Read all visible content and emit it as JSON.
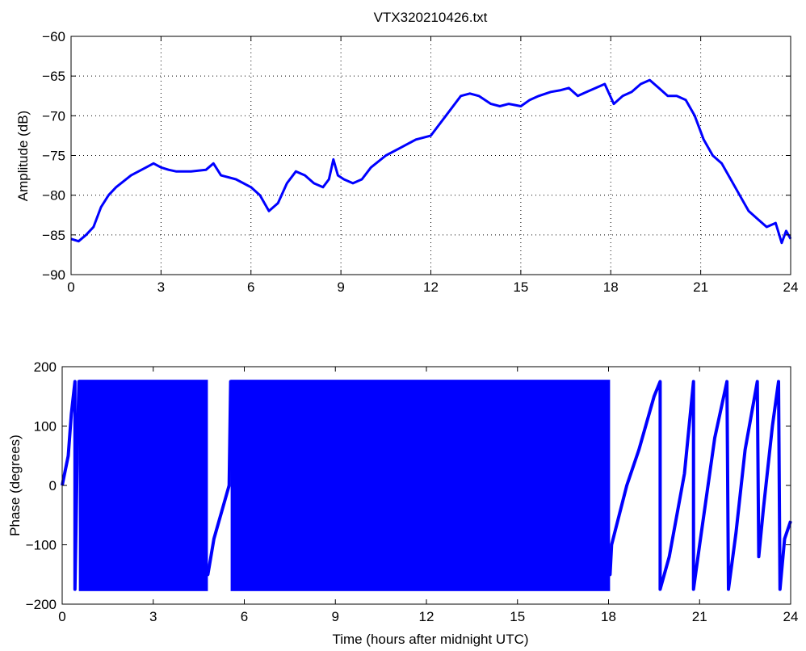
{
  "chart_data": [
    {
      "type": "line",
      "title": "VTX320210426.txt",
      "xlabel": "",
      "ylabel": "Amplitude (dB)",
      "xlim": [
        0,
        24
      ],
      "ylim": [
        -90,
        -60
      ],
      "xticks": [
        "0",
        "3",
        "6",
        "9",
        "12",
        "15",
        "18",
        "21",
        "24"
      ],
      "yticks": [
        "−60",
        "−65",
        "−70",
        "−75",
        "−80",
        "−85",
        "−90"
      ],
      "grid": true,
      "color": "#0000ff",
      "series": [
        {
          "x": [
            0,
            0.25,
            0.5,
            0.75,
            1.0,
            1.25,
            1.5,
            2.0,
            2.5,
            2.75,
            3.0,
            3.25,
            3.5,
            4.0,
            4.5,
            4.75,
            5.0,
            5.5,
            6.0,
            6.3,
            6.6,
            6.9,
            7.2,
            7.5,
            7.8,
            8.1,
            8.4,
            8.6,
            8.75,
            8.9,
            9.1,
            9.4,
            9.7,
            10.0,
            10.5,
            11.0,
            11.5,
            12.0,
            12.5,
            13.0,
            13.3,
            13.6,
            14.0,
            14.3,
            14.6,
            15.0,
            15.3,
            15.6,
            16.0,
            16.3,
            16.6,
            16.9,
            17.2,
            17.5,
            17.8,
            18.1,
            18.4,
            18.7,
            19.0,
            19.3,
            19.6,
            19.9,
            20.2,
            20.5,
            20.8,
            21.1,
            21.4,
            21.7,
            22.0,
            22.3,
            22.6,
            22.9,
            23.2,
            23.5,
            23.7,
            23.85,
            24.0
          ],
          "values": [
            -85.5,
            -85.8,
            -85.0,
            -84.0,
            -81.5,
            -80.0,
            -79.0,
            -77.5,
            -76.5,
            -76.0,
            -76.5,
            -76.8,
            -77.0,
            -77.0,
            -76.8,
            -76.0,
            -77.5,
            -78.0,
            -79.0,
            -80.0,
            -82.0,
            -81.0,
            -78.5,
            -77.0,
            -77.5,
            -78.5,
            -79.0,
            -78.0,
            -75.5,
            -77.5,
            -78.0,
            -78.5,
            -78.0,
            -76.5,
            -75.0,
            -74.0,
            -73.0,
            -72.5,
            -70.0,
            -67.5,
            -67.2,
            -67.5,
            -68.5,
            -68.8,
            -68.5,
            -68.8,
            -68.0,
            -67.5,
            -67.0,
            -66.8,
            -66.5,
            -67.5,
            -67.0,
            -66.5,
            -66.0,
            -68.5,
            -67.5,
            -67.0,
            -66.0,
            -65.5,
            -66.5,
            -67.5,
            -67.5,
            -68.0,
            -70.0,
            -73.0,
            -75.0,
            -76.0,
            -78.0,
            -80.0,
            -82.0,
            -83.0,
            -84.0,
            -83.5,
            -86.0,
            -84.5,
            -85.5
          ]
        }
      ]
    },
    {
      "type": "line",
      "title": "",
      "xlabel": "Time (hours after midnight UTC)",
      "ylabel": "Phase (degrees)",
      "xlim": [
        0,
        24
      ],
      "ylim": [
        -200,
        200
      ],
      "xticks": [
        "0",
        "3",
        "6",
        "9",
        "12",
        "15",
        "18",
        "21",
        "24"
      ],
      "yticks": [
        "200",
        "100",
        "0",
        "−100",
        "−200"
      ],
      "grid": false,
      "color": "#0000ff",
      "series": [
        {
          "x": [
            0,
            0.2,
            0.3,
            0.42,
            0.42,
            0.5,
            0.55,
            4.8,
            5.0,
            5.5,
            5.55,
            18.05,
            18.1,
            18.3,
            18.6,
            19.0,
            19.5,
            19.7,
            19.7,
            20.0,
            20.5,
            20.8,
            20.8,
            21.0,
            21.5,
            21.9,
            21.95,
            22.2,
            22.5,
            22.9,
            22.95,
            23.1,
            23.4,
            23.6,
            23.65,
            23.8,
            24.0
          ],
          "values": [
            0,
            50,
            120,
            175,
            -175,
            60,
            175,
            -150,
            -90,
            0,
            175,
            -150,
            -100,
            -60,
            0,
            60,
            150,
            175,
            -175,
            -120,
            20,
            175,
            -175,
            -100,
            80,
            175,
            -175,
            -80,
            60,
            175,
            -120,
            -40,
            100,
            175,
            -175,
            -90,
            -60
          ]
        }
      ],
      "dense_band": [
        {
          "x0": 0.55,
          "x1": 4.8,
          "low": -178,
          "high": 178
        },
        {
          "x0": 5.55,
          "x1": 18.05,
          "low": -178,
          "high": 178
        }
      ]
    }
  ]
}
